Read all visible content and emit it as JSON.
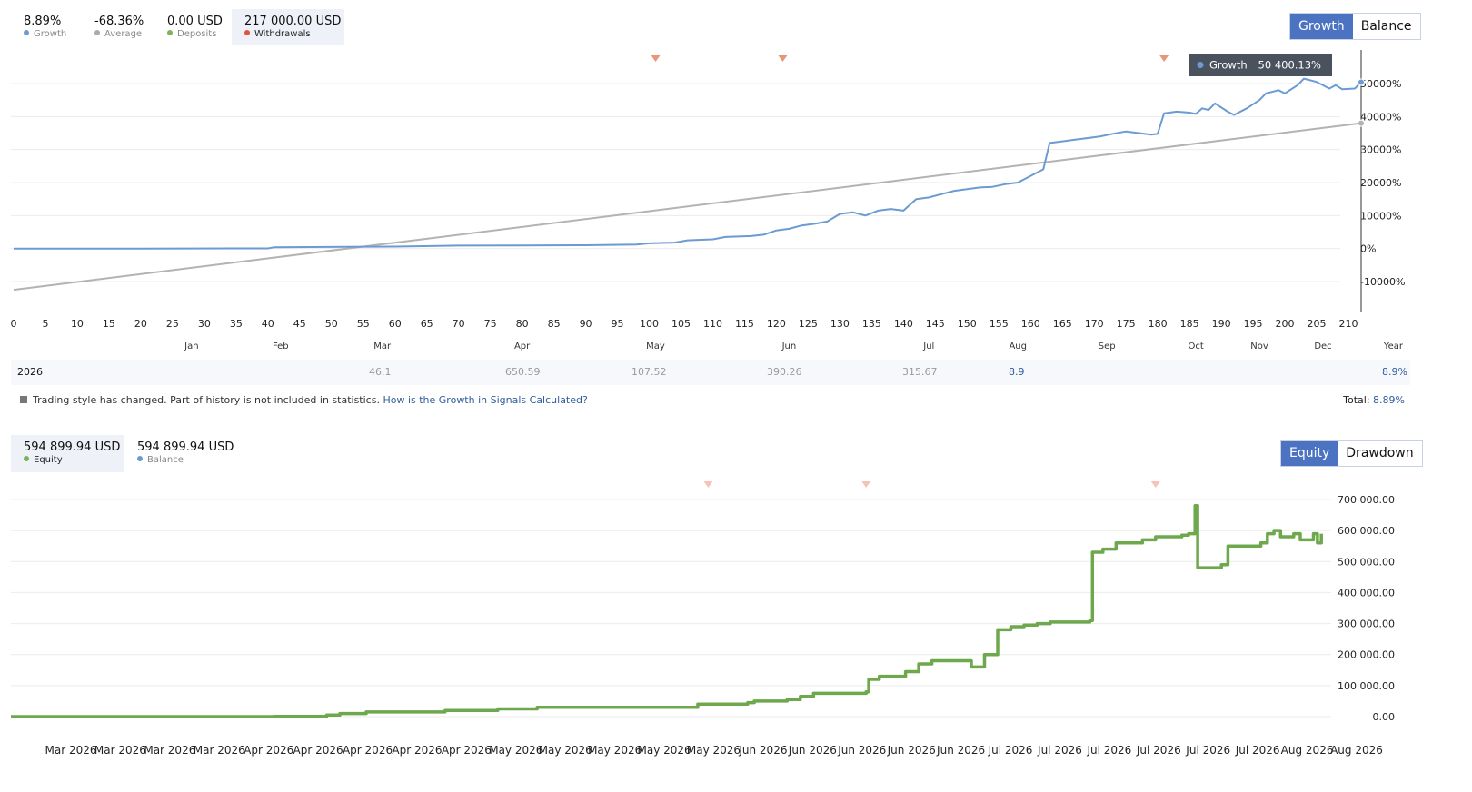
{
  "top_stats": [
    {
      "value": "8.89%",
      "label": "Growth",
      "color": "#6b9bd2"
    },
    {
      "value": "-68.36%",
      "label": "Average",
      "color": "#aaaaaa"
    },
    {
      "value": "0.00 USD",
      "label": "Deposits",
      "color": "#7cb35a"
    },
    {
      "value": "217 000.00 USD",
      "label": "Withdrawals",
      "color": "#e0533f"
    }
  ],
  "top_toggle": {
    "active": "Growth",
    "inactive": "Balance"
  },
  "tooltip": {
    "label": "Growth",
    "value": "50 400.13%"
  },
  "colors": {
    "growth": "#6b9bd2",
    "average": "#b3b3b3",
    "equity": "#6ea84d",
    "accent": "#4b73c1",
    "marker": "#e8967a"
  },
  "year_row": {
    "year": "2026",
    "mar": "46.1",
    "apr": "650.59",
    "may": "107.52",
    "jun": "390.26",
    "jul": "315.67",
    "aug": "8.9",
    "year_total": "8.9%"
  },
  "note": {
    "text": "Trading style has changed. Part of history is not included in statistics. ",
    "link": "How is the Growth in Signals Calculated?",
    "total_label": "Total:",
    "total_value": "8.89%"
  },
  "bottom_stats": [
    {
      "value": "594 899.94 USD",
      "label": "Equity",
      "color": "#7cb35a"
    },
    {
      "value": "594 899.94 USD",
      "label": "Balance",
      "color": "#6b9bd2"
    }
  ],
  "bottom_toggle": {
    "active": "Equity",
    "inactive": "Drawdown"
  },
  "chart_data": [
    {
      "type": "line",
      "xlim": [
        0,
        210
      ],
      "ylim": [
        -20000,
        55000
      ],
      "x_ticks": [
        0,
        5,
        10,
        15,
        20,
        25,
        30,
        35,
        40,
        45,
        50,
        55,
        60,
        65,
        70,
        75,
        80,
        85,
        90,
        95,
        100,
        105,
        110,
        115,
        120,
        125,
        130,
        135,
        140,
        145,
        150,
        155,
        160,
        165,
        170,
        175,
        180,
        185,
        190,
        195,
        200,
        205,
        210
      ],
      "y_ticks": [
        {
          "v": 50000,
          "label": "50000%"
        },
        {
          "v": 40000,
          "label": "40000%"
        },
        {
          "v": 30000,
          "label": "30000%"
        },
        {
          "v": 20000,
          "label": "20000%"
        },
        {
          "v": 10000,
          "label": "10000%"
        },
        {
          "v": 0,
          "label": "0%"
        },
        {
          "v": -10000,
          "label": "-10000%"
        }
      ],
      "month_labels": [
        {
          "x": 28,
          "label": "Jan"
        },
        {
          "x": 42,
          "label": "Feb"
        },
        {
          "x": 58,
          "label": "Mar"
        },
        {
          "x": 80,
          "label": "Apr"
        },
        {
          "x": 101,
          "label": "May"
        },
        {
          "x": 122,
          "label": "Jun"
        },
        {
          "x": 144,
          "label": "Jul"
        },
        {
          "x": 158,
          "label": "Aug"
        },
        {
          "x": 172,
          "label": "Sep"
        },
        {
          "x": 186,
          "label": "Oct"
        },
        {
          "x": 196,
          "label": "Nov"
        },
        {
          "x": 206,
          "label": "Dec"
        }
      ],
      "last_label": "Year",
      "markers_x": [
        101,
        121,
        181
      ],
      "series": [
        {
          "name": "Growth",
          "color": "#6b9bd2",
          "points": [
            [
              0,
              0
            ],
            [
              20,
              0
            ],
            [
              40,
              50
            ],
            [
              41,
              400
            ],
            [
              60,
              600
            ],
            [
              70,
              900
            ],
            [
              80,
              950
            ],
            [
              90,
              1000
            ],
            [
              98,
              1200
            ],
            [
              100,
              1600
            ],
            [
              104,
              1800
            ],
            [
              106,
              2500
            ],
            [
              110,
              2800
            ],
            [
              112,
              3500
            ],
            [
              116,
              3800
            ],
            [
              118,
              4200
            ],
            [
              120,
              5500
            ],
            [
              122,
              6000
            ],
            [
              124,
              7000
            ],
            [
              126,
              7500
            ],
            [
              128,
              8200
            ],
            [
              130,
              10500
            ],
            [
              132,
              11000
            ],
            [
              134,
              10000
            ],
            [
              136,
              11500
            ],
            [
              138,
              12000
            ],
            [
              140,
              11500
            ],
            [
              142,
              15000
            ],
            [
              144,
              15500
            ],
            [
              146,
              16500
            ],
            [
              148,
              17500
            ],
            [
              150,
              18000
            ],
            [
              152,
              18500
            ],
            [
              154,
              18700
            ],
            [
              156,
              19500
            ],
            [
              158,
              20000
            ],
            [
              160,
              22000
            ],
            [
              162,
              24000
            ],
            [
              163,
              32000
            ],
            [
              165,
              32500
            ],
            [
              167,
              33000
            ],
            [
              169,
              33500
            ],
            [
              171,
              34000
            ],
            [
              173,
              34800
            ],
            [
              175,
              35500
            ],
            [
              177,
              35000
            ],
            [
              179,
              34500
            ],
            [
              180,
              34800
            ],
            [
              181,
              41000
            ],
            [
              183,
              41500
            ],
            [
              185,
              41200
            ],
            [
              186,
              40800
            ],
            [
              187,
              42500
            ],
            [
              188,
              42000
            ],
            [
              189,
              44000
            ],
            [
              191,
              41500
            ],
            [
              192,
              40500
            ],
            [
              194,
              42500
            ],
            [
              196,
              45000
            ],
            [
              197,
              47000
            ],
            [
              199,
              48000
            ],
            [
              200,
              47000
            ],
            [
              202,
              49500
            ],
            [
              203,
              51500
            ],
            [
              205,
              50500
            ],
            [
              207,
              48500
            ],
            [
              208,
              49500
            ],
            [
              209,
              48300
            ],
            [
              211,
              48500
            ],
            [
              212,
              50400
            ]
          ]
        },
        {
          "name": "Average",
          "color": "#b3b3b3",
          "points": [
            [
              0,
              -12500
            ],
            [
              212,
              38000
            ]
          ]
        }
      ]
    },
    {
      "type": "line",
      "ylim": [
        -40000,
        760000
      ],
      "y_ticks": [
        {
          "v": 700000,
          "label": "700 000.00"
        },
        {
          "v": 600000,
          "label": "600 000.00"
        },
        {
          "v": 500000,
          "label": "500 000.00"
        },
        {
          "v": 400000,
          "label": "400 000.00"
        },
        {
          "v": 300000,
          "label": "300 000.00"
        },
        {
          "v": 200000,
          "label": "200 000.00"
        },
        {
          "v": 100000,
          "label": "100 000.00"
        },
        {
          "v": 0,
          "label": "0.00"
        }
      ],
      "x_labels": [
        "Mar 2026",
        "Mar 2026",
        "Mar 2026",
        "Mar 2026",
        "Apr 2026",
        "Apr 2026",
        "Apr 2026",
        "Apr 2026",
        "Apr 2026",
        "May 2026",
        "May 2026",
        "May 2026",
        "May 2026",
        "May 2026",
        "Jun 2026",
        "Jun 2026",
        "Jun 2026",
        "Jun 2026",
        "Jun 2026",
        "Jul 2026",
        "Jul 2026",
        "Jul 2026",
        "Jul 2026",
        "Jul 2026",
        "Jul 2026",
        "Aug 2026",
        "Aug 2026"
      ],
      "markers_t": [
        0.53,
        0.65,
        0.87
      ],
      "series": [
        {
          "name": "Equity",
          "color": "#6ea84d",
          "points": [
            [
              0,
              0
            ],
            [
              0.15,
              0
            ],
            [
              0.2,
              1000
            ],
            [
              0.24,
              5000
            ],
            [
              0.25,
              10000
            ],
            [
              0.27,
              15000
            ],
            [
              0.33,
              20000
            ],
            [
              0.37,
              25000
            ],
            [
              0.4,
              30000
            ],
            [
              0.44,
              30000
            ],
            [
              0.52,
              30000
            ],
            [
              0.522,
              40000
            ],
            [
              0.56,
              45000
            ],
            [
              0.565,
              50000
            ],
            [
              0.59,
              55000
            ],
            [
              0.6,
              65000
            ],
            [
              0.61,
              75000
            ],
            [
              0.62,
              75000
            ],
            [
              0.65,
              80000
            ],
            [
              0.652,
              120000
            ],
            [
              0.66,
              130000
            ],
            [
              0.68,
              145000
            ],
            [
              0.69,
              170000
            ],
            [
              0.7,
              180000
            ],
            [
              0.72,
              180000
            ],
            [
              0.73,
              160000
            ],
            [
              0.74,
              200000
            ],
            [
              0.75,
              280000
            ],
            [
              0.76,
              290000
            ],
            [
              0.77,
              295000
            ],
            [
              0.78,
              300000
            ],
            [
              0.79,
              305000
            ],
            [
              0.82,
              310000
            ],
            [
              0.822,
              530000
            ],
            [
              0.83,
              540000
            ],
            [
              0.84,
              560000
            ],
            [
              0.86,
              570000
            ],
            [
              0.87,
              580000
            ],
            [
              0.89,
              585000
            ],
            [
              0.895,
              590000
            ],
            [
              0.9,
              680000
            ],
            [
              0.902,
              480000
            ],
            [
              0.92,
              490000
            ],
            [
              0.925,
              550000
            ],
            [
              0.94,
              550000
            ],
            [
              0.95,
              560000
            ],
            [
              0.955,
              590000
            ],
            [
              0.96,
              600000
            ],
            [
              0.965,
              580000
            ],
            [
              0.975,
              590000
            ],
            [
              0.98,
              570000
            ],
            [
              0.99,
              590000
            ],
            [
              0.993,
              560000
            ],
            [
              0.996,
              590000
            ]
          ]
        }
      ]
    }
  ]
}
